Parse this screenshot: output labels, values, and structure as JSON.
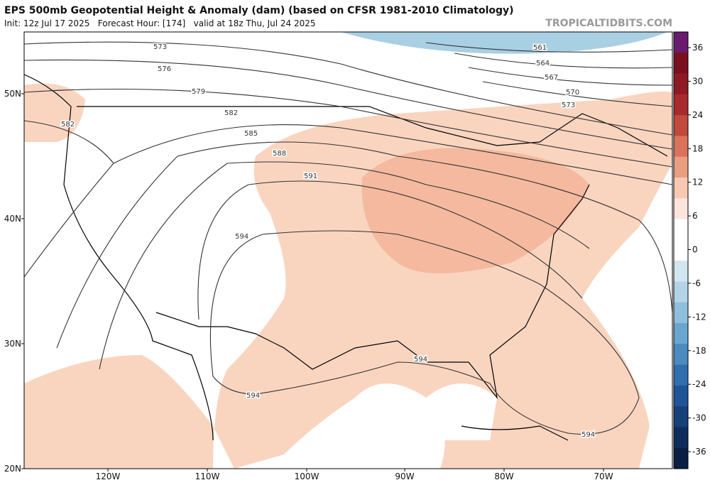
{
  "header": {
    "title": "EPS 500mb Geopotential Height & Anomaly (dam) (based on CFSR 1981-2010 Climatology)",
    "subtitle": "Init: 12z Jul 17 2025   Forecast Hour: [174]   valid at 18z Thu, Jul 24 2025",
    "watermark": "TROPICALTIDBITS.COM"
  },
  "map": {
    "latitude_labels": [
      "50N",
      "40N",
      "30N",
      "20N"
    ],
    "longitude_labels": [
      "120W",
      "110W",
      "100W",
      "90W",
      "80W",
      "70W"
    ],
    "contour_labels": [
      "573",
      "576",
      "579",
      "582",
      "585",
      "588",
      "591",
      "594",
      "594",
      "594",
      "594",
      "582",
      "561",
      "564",
      "567",
      "570",
      "573"
    ]
  },
  "colorbar": {
    "ticks": [
      36,
      30,
      24,
      18,
      12,
      6,
      0,
      -6,
      -12,
      -18,
      -24,
      -30,
      -36
    ]
  }
}
